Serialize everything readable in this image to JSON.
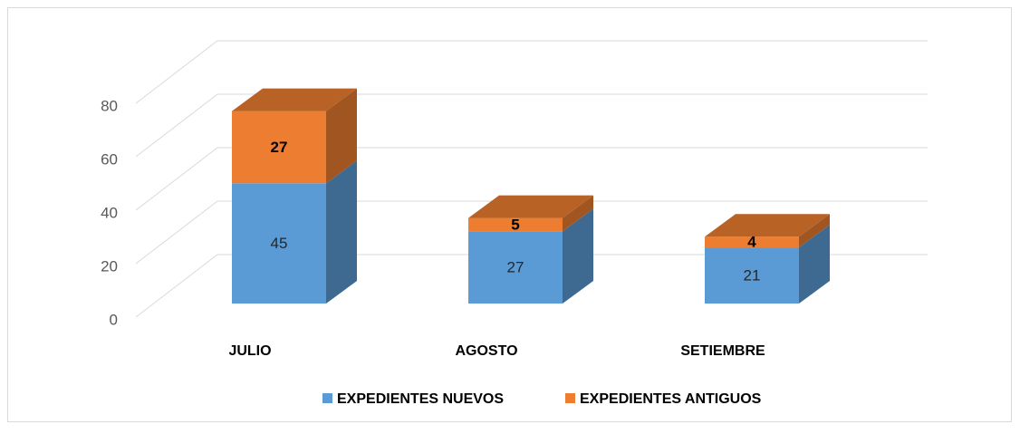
{
  "chart_data": {
    "type": "bar3d_stacked",
    "categories": [
      "JULIO",
      "AGOSTO",
      "SETIEMBRE"
    ],
    "series": [
      {
        "name": "EXPEDIENTES NUEVOS",
        "color": "#5b9bd5",
        "values": [
          45,
          27,
          21
        ]
      },
      {
        "name": "EXPEDIENTES ANTIGUOS",
        "color": "#ed7d31",
        "values": [
          27,
          5,
          4
        ]
      }
    ],
    "ylim": [
      0,
      80
    ],
    "yticks": [
      0,
      20,
      40,
      60,
      80
    ],
    "grid": true,
    "legend": "bottom"
  }
}
